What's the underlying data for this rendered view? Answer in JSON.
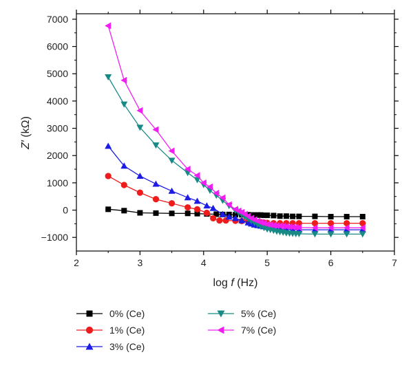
{
  "chart_data": {
    "type": "line",
    "title": "",
    "xlabel": "log f (Hz)",
    "xlabel_pre": "log ",
    "xlabel_var": "f",
    "xlabel_post": " (Hz)",
    "ylabel": "Z′ (kΩ)",
    "ylabel_var": "Z′",
    "ylabel_post": " (kΩ)",
    "xlim": [
      2,
      7
    ],
    "ylim": [
      -1500,
      7200
    ],
    "xticks": [
      2,
      3,
      4,
      5,
      6,
      7
    ],
    "yticks": [
      -1000,
      0,
      1000,
      2000,
      3000,
      4000,
      5000,
      6000,
      7000
    ],
    "xtick_labels": [
      "2",
      "3",
      "4",
      "5",
      "6",
      "7"
    ],
    "ytick_labels": [
      "−1000",
      "0",
      "1000",
      "2000",
      "3000",
      "4000",
      "5000",
      "6000",
      "7000"
    ],
    "grid": false,
    "legend_position": "bottom",
    "series": [
      {
        "name": "0% (Ce)",
        "color": "#000000",
        "marker": "square",
        "x": [
          2.5,
          2.75,
          3.0,
          3.25,
          3.5,
          3.75,
          3.9,
          4.05,
          4.2,
          4.3,
          4.4,
          4.5,
          4.6,
          4.7,
          4.75,
          4.8,
          4.85,
          4.9,
          4.95,
          5.0,
          5.1,
          5.2,
          5.3,
          5.4,
          5.5,
          5.75,
          6.0,
          6.25,
          6.5
        ],
        "y": [
          30,
          -20,
          -100,
          -110,
          -120,
          -120,
          -130,
          -140,
          -150,
          -160,
          -160,
          -170,
          -170,
          -170,
          -180,
          -180,
          -180,
          -180,
          -190,
          -190,
          -200,
          -220,
          -220,
          -230,
          -230,
          -230,
          -240,
          -240,
          -240
        ]
      },
      {
        "name": "1% (Ce)",
        "color": "#ee1c1c",
        "marker": "circle",
        "x": [
          2.5,
          2.75,
          3.0,
          3.25,
          3.5,
          3.75,
          3.9,
          4.05,
          4.15,
          4.25,
          4.35,
          4.5,
          4.6,
          4.7,
          4.75,
          4.8,
          4.85,
          4.9,
          4.95,
          5.0,
          5.1,
          5.2,
          5.3,
          5.4,
          5.5,
          5.75,
          6.0,
          6.25,
          6.5
        ],
        "y": [
          1250,
          920,
          640,
          400,
          250,
          100,
          30,
          -100,
          -300,
          -380,
          -380,
          -390,
          -400,
          -410,
          -420,
          -430,
          -440,
          -450,
          -460,
          -470,
          -480,
          -480,
          -480,
          -480,
          -480,
          -480,
          -480,
          -480,
          -480
        ]
      },
      {
        "name": "3% (Ce)",
        "color": "#1c1ce6",
        "marker": "triangle-up",
        "x": [
          2.5,
          2.75,
          3.0,
          3.25,
          3.5,
          3.75,
          3.9,
          4.05,
          4.15,
          4.3,
          4.4,
          4.5,
          4.6,
          4.7,
          4.75,
          4.8,
          4.85,
          4.9,
          4.95,
          5.0,
          5.1,
          5.2,
          5.3,
          5.4,
          5.5,
          5.75,
          6.0,
          6.25,
          6.5
        ],
        "y": [
          2350,
          1620,
          1250,
          960,
          700,
          460,
          330,
          160,
          70,
          -150,
          -250,
          -300,
          -380,
          -460,
          -500,
          -540,
          -560,
          -580,
          -600,
          -620,
          -650,
          -680,
          -700,
          -710,
          -720,
          -720,
          -720,
          -720,
          -720
        ]
      },
      {
        "name": "5% (Ce)",
        "color": "#178a86",
        "marker": "triangle-down",
        "x": [
          2.5,
          2.75,
          3.0,
          3.25,
          3.5,
          3.75,
          3.9,
          4.0,
          4.1,
          4.2,
          4.3,
          4.4,
          4.5,
          4.55,
          4.6,
          4.65,
          4.7,
          4.75,
          4.8,
          4.85,
          4.9,
          4.95,
          5.0,
          5.05,
          5.1,
          5.15,
          5.2,
          5.25,
          5.3,
          5.35,
          5.4,
          5.45,
          5.5,
          5.75,
          6.0,
          6.25,
          6.5
        ],
        "y": [
          4880,
          3880,
          3030,
          2380,
          1820,
          1370,
          1110,
          930,
          720,
          540,
          350,
          160,
          -20,
          -90,
          -170,
          -250,
          -320,
          -400,
          -460,
          -530,
          -600,
          -650,
          -700,
          -720,
          -750,
          -780,
          -800,
          -820,
          -840,
          -850,
          -860,
          -870,
          -870,
          -880,
          -880,
          -880,
          -880
        ]
      },
      {
        "name": "7% (Ce)",
        "color": "#f01ef0",
        "marker": "triangle-left",
        "x": [
          2.5,
          2.75,
          3.0,
          3.25,
          3.5,
          3.75,
          3.9,
          4.0,
          4.1,
          4.2,
          4.3,
          4.4,
          4.5,
          4.55,
          4.6,
          4.65,
          4.7,
          4.75,
          4.8,
          4.85,
          4.9,
          4.95,
          5.0,
          5.05,
          5.1,
          5.15,
          5.2,
          5.25,
          5.3,
          5.35,
          5.4,
          5.45,
          5.5,
          5.75,
          6.0,
          6.25,
          6.5
        ],
        "y": [
          6760,
          4760,
          3650,
          2950,
          2170,
          1500,
          1270,
          1000,
          850,
          620,
          450,
          200,
          30,
          -30,
          -80,
          -150,
          -220,
          -300,
          -350,
          -400,
          -450,
          -480,
          -520,
          -540,
          -560,
          -570,
          -580,
          -590,
          -600,
          -610,
          -620,
          -630,
          -640,
          -650,
          -650,
          -650,
          -650
        ]
      }
    ]
  }
}
